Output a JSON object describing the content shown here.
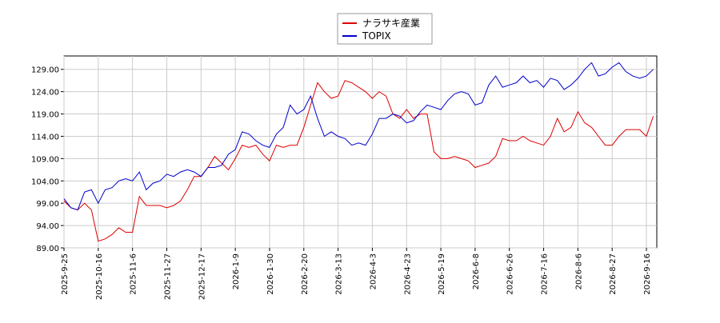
{
  "chart_data": {
    "type": "line",
    "categories": [
      "2025-9-25",
      null,
      null,
      null,
      null,
      "2025-10-16",
      null,
      null,
      null,
      null,
      "2025-11-6",
      null,
      null,
      null,
      null,
      "2025-11-27",
      null,
      null,
      null,
      null,
      "2025-12-17",
      null,
      null,
      null,
      null,
      "2026-1-9",
      null,
      null,
      null,
      null,
      "2026-1-30",
      null,
      null,
      null,
      null,
      "2026-2-20",
      null,
      null,
      null,
      null,
      "2026-3-13",
      null,
      null,
      null,
      null,
      "2026-4-3",
      null,
      null,
      null,
      null,
      "2026-4-23",
      null,
      null,
      null,
      null,
      "2026-5-19",
      null,
      null,
      null,
      null,
      "2026-6-8",
      null,
      null,
      null,
      null,
      "2026-6-26",
      null,
      null,
      null,
      null,
      "2026-7-16",
      null,
      null,
      null,
      null,
      "2026-8-6",
      null,
      null,
      null,
      null,
      "2026-8-27",
      null,
      null,
      null,
      null,
      "2026-9-16",
      null
    ],
    "series": [
      {
        "name": "ナラサキ産業",
        "color": "#dd0000",
        "values": [
          99.5,
          98,
          97.5,
          99,
          97.5,
          90.5,
          91,
          92,
          93.5,
          92.5,
          92.5,
          100.5,
          98.5,
          98.5,
          98.5,
          98,
          98.5,
          99.5,
          102,
          105,
          105,
          107,
          109.5,
          108,
          106.5,
          109,
          112,
          111.5,
          112,
          110,
          108.5,
          112,
          111.5,
          112,
          112,
          116,
          121,
          126,
          124,
          122.5,
          123,
          126.5,
          126,
          125,
          124,
          122.5,
          124,
          123,
          119,
          118,
          120,
          118,
          119,
          119,
          110.5,
          109,
          109,
          109.5,
          109,
          108.5,
          107,
          107.5,
          108,
          109.5,
          113.5,
          113,
          113,
          114,
          113,
          112.5,
          112,
          114,
          118,
          115,
          116,
          119.5,
          117,
          116,
          114,
          112,
          112,
          114,
          115.5,
          115.5,
          115.5,
          114,
          118.5
        ]
      },
      {
        "name": "TOPIX",
        "color": "#0000cc",
        "values": [
          100,
          98,
          97.5,
          101.5,
          102,
          99,
          102,
          102.5,
          104,
          104.5,
          104,
          106,
          102,
          103.5,
          104,
          105.5,
          105,
          106,
          106.5,
          106,
          105,
          107,
          107,
          107.5,
          110,
          111,
          115,
          114.5,
          113,
          112,
          111.5,
          114.5,
          116,
          121,
          119,
          120,
          123,
          118,
          114,
          115,
          114,
          113.5,
          112,
          112.5,
          112,
          114.5,
          118,
          118,
          119,
          118.5,
          117,
          117.5,
          119.5,
          121,
          120.5,
          120,
          122,
          123.5,
          124,
          123.5,
          121,
          121.5,
          125.5,
          127.5,
          125,
          125.5,
          126,
          127.5,
          126,
          126.5,
          125,
          127,
          126.5,
          124.5,
          125.5,
          127,
          129,
          130.5,
          127.5,
          128,
          129.5,
          130.5,
          128.5,
          127.5,
          127,
          127.5,
          129
        ]
      }
    ],
    "ylim": [
      89,
      132
    ],
    "yticks": [
      {
        "value": 89,
        "label": "89.00"
      },
      {
        "value": 94,
        "label": "94.00"
      },
      {
        "value": 99,
        "label": "99.00"
      },
      {
        "value": 104,
        "label": "104.00"
      },
      {
        "value": 109,
        "label": "109.00"
      },
      {
        "value": 114,
        "label": "114.00"
      },
      {
        "value": 119,
        "label": "119.00"
      },
      {
        "value": 124,
        "label": "124.00"
      },
      {
        "value": 129,
        "label": "129.00"
      }
    ],
    "grid": true,
    "legend": "top"
  }
}
